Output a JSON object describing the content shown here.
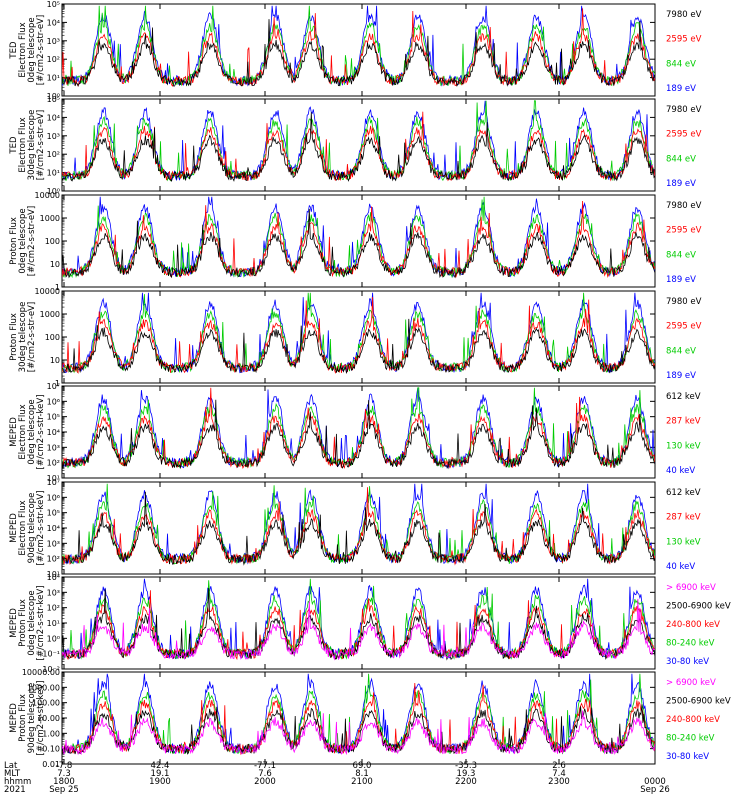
{
  "chart_data": [
    {
      "type": "line",
      "ylabel": [
        "TED",
        "Electron Flux",
        "0deg telescope",
        "[#/cm2-s-str-eV]"
      ],
      "y_ticks": [
        "10⁰",
        "10¹",
        "10²",
        "10³",
        "10⁴",
        "10⁵"
      ],
      "y_range": [
        1,
        100000
      ],
      "y_scale": "log",
      "legend": [
        {
          "label": "7980 eV",
          "color": "#000000"
        },
        {
          "label": "2595 eV",
          "color": "#ff0000"
        },
        {
          "label": "844 eV",
          "color": "#00cc00"
        },
        {
          "label": "189 eV",
          "color": "#0000ff"
        }
      ]
    },
    {
      "type": "line",
      "ylabel": [
        "TED",
        "Electron Flux",
        "30deg telescope",
        "[#/cm2-s-str-eV]"
      ],
      "y_ticks": [
        "10⁰",
        "10¹",
        "10²",
        "10³",
        "10⁴",
        "10⁵"
      ],
      "y_range": [
        1,
        100000
      ],
      "y_scale": "log",
      "legend": [
        {
          "label": "7980 eV",
          "color": "#000000"
        },
        {
          "label": "2595 eV",
          "color": "#ff0000"
        },
        {
          "label": "844 eV",
          "color": "#00cc00"
        },
        {
          "label": "189 eV",
          "color": "#0000ff"
        }
      ]
    },
    {
      "type": "line",
      "ylabel": [
        "Proton Flux",
        "0deg telescope",
        "[#/cm2-s-str-eV]"
      ],
      "y_ticks": [
        "1",
        "10",
        "100",
        "1000",
        "10000"
      ],
      "y_range": [
        1,
        10000
      ],
      "y_scale": "log",
      "legend": [
        {
          "label": "7980 eV",
          "color": "#000000"
        },
        {
          "label": "2595 eV",
          "color": "#ff0000"
        },
        {
          "label": "844 eV",
          "color": "#00cc00"
        },
        {
          "label": "189 eV",
          "color": "#0000ff"
        }
      ]
    },
    {
      "type": "line",
      "ylabel": [
        "Proton Flux",
        "30deg telescope",
        "[#/cm2-s-str-eV]"
      ],
      "y_ticks": [
        "1",
        "10",
        "100",
        "1000",
        "10000"
      ],
      "y_range": [
        1,
        10000
      ],
      "y_scale": "log",
      "legend": [
        {
          "label": "7980 eV",
          "color": "#000000"
        },
        {
          "label": "2595 eV",
          "color": "#ff0000"
        },
        {
          "label": "844 eV",
          "color": "#00cc00"
        },
        {
          "label": "189 eV",
          "color": "#0000ff"
        }
      ]
    },
    {
      "type": "line",
      "ylabel": [
        "MEPED",
        "Electron Flux",
        "0deg telescope",
        "[#/cm2-s-str-keV]"
      ],
      "y_ticks": [
        "10¹",
        "10²",
        "10³",
        "10⁴",
        "10⁵",
        "10⁶",
        "10⁷"
      ],
      "y_range": [
        10,
        10000000
      ],
      "y_scale": "log",
      "legend": [
        {
          "label": "612 keV",
          "color": "#000000"
        },
        {
          "label": "287 keV",
          "color": "#ff0000"
        },
        {
          "label": "130 keV",
          "color": "#00cc00"
        },
        {
          "label": "40 keV",
          "color": "#0000ff"
        }
      ]
    },
    {
      "type": "line",
      "ylabel": [
        "MEPED",
        "Electron Flux",
        "90deg telescope",
        "[#/cm2-s-str-keV]"
      ],
      "y_ticks": [
        "10¹",
        "10²",
        "10³",
        "10⁴",
        "10⁵",
        "10⁶",
        "10⁷"
      ],
      "y_range": [
        10,
        10000000
      ],
      "y_scale": "log",
      "legend": [
        {
          "label": "612 keV",
          "color": "#000000"
        },
        {
          "label": "287 keV",
          "color": "#ff0000"
        },
        {
          "label": "130 keV",
          "color": "#00cc00"
        },
        {
          "label": "40 keV",
          "color": "#0000ff"
        }
      ]
    },
    {
      "type": "line",
      "ylabel": [
        "MEPED",
        "Proton Flux",
        "0deg telescope",
        "[#/cm2-s-str-keV]"
      ],
      "y_ticks": [
        "10⁻²",
        "10⁻¹",
        "10⁰",
        "10¹",
        "10²",
        "10³",
        "10⁴"
      ],
      "y_range": [
        0.01,
        10000
      ],
      "y_scale": "log",
      "legend": [
        {
          "label": "> 6900 keV",
          "color": "#ff00ff"
        },
        {
          "label": "2500-6900 keV",
          "color": "#000000"
        },
        {
          "label": "240-800 keV",
          "color": "#ff0000"
        },
        {
          "label": "80-240 keV",
          "color": "#00cc00"
        },
        {
          "label": "30-80 keV",
          "color": "#0000ff"
        }
      ]
    },
    {
      "type": "line",
      "ylabel": [
        "MEPED",
        "Proton Flux",
        "90deg telescope",
        "[#/cm2-s-str-keV]"
      ],
      "y_ticks": [
        "0.01",
        "0.10",
        "1.00",
        "10.00",
        "100.00",
        "1000.00",
        "10000.00"
      ],
      "y_range": [
        0.01,
        10000
      ],
      "y_scale": "log",
      "legend": [
        {
          "label": "> 6900 keV",
          "color": "#ff00ff"
        },
        {
          "label": "2500-6900 keV",
          "color": "#000000"
        },
        {
          "label": "240-800 keV",
          "color": "#ff0000"
        },
        {
          "label": "80-240 keV",
          "color": "#00cc00"
        },
        {
          "label": "30-80 keV",
          "color": "#0000ff"
        }
      ]
    }
  ],
  "x_axis": {
    "row_labels": [
      "Lat",
      "MLT",
      "hhmm",
      "2021"
    ],
    "ticks": [
      {
        "lat": "-7.8",
        "mlt": "7.3",
        "hhmm": "1800",
        "date": "Sep 25"
      },
      {
        "lat": "42.4",
        "mlt": "19.1",
        "hhmm": "1900",
        "date": ""
      },
      {
        "lat": "-77.1",
        "mlt": "7.6",
        "hhmm": "2000",
        "date": ""
      },
      {
        "lat": "69.0",
        "mlt": "8.1",
        "hhmm": "2100",
        "date": ""
      },
      {
        "lat": "-35.3",
        "mlt": "19.3",
        "hhmm": "2200",
        "date": ""
      },
      {
        "lat": "2.6",
        "mlt": "7.4",
        "hhmm": "2300",
        "date": ""
      },
      {
        "lat": "",
        "mlt": "",
        "hhmm": "0000",
        "date": "Sep 26"
      }
    ]
  }
}
